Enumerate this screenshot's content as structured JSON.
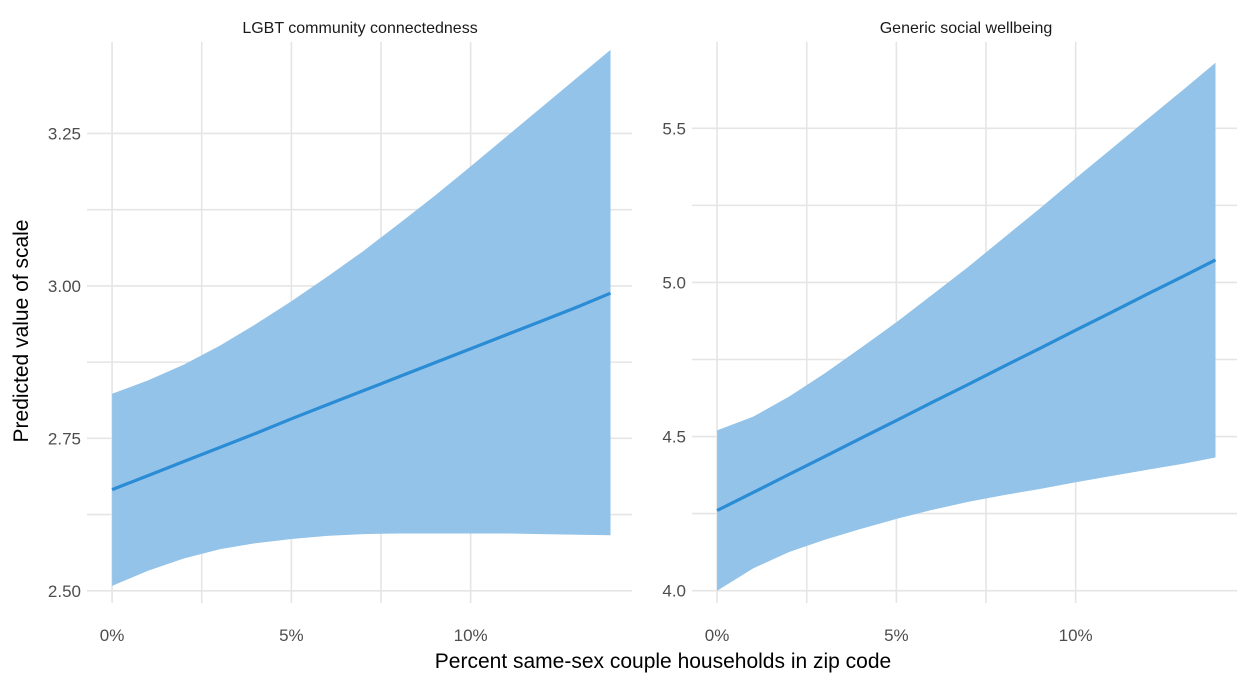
{
  "chart_data": {
    "type": "line",
    "xlabel": "Percent same-sex couple households in zip code",
    "ylabel": "Predicted value of scale",
    "colors": {
      "ribbon": "#93c3e8",
      "line": "#2b8cd6",
      "grid": "#e5e5e5"
    },
    "grid": true,
    "legend": "none",
    "panels": [
      {
        "title": "LGBT community connectedness",
        "xlim": [
          -0.007,
          0.145
        ],
        "ylim": [
          2.48,
          3.4
        ],
        "xticks": [
          0,
          0.05,
          0.1
        ],
        "xtick_labels": [
          "0%",
          "5%",
          "10%"
        ],
        "yticks": [
          2.5,
          2.75,
          3.0,
          3.25
        ],
        "ytick_labels": [
          "2.50",
          "2.75",
          "3.00",
          "3.25"
        ],
        "x": [
          0,
          0.01,
          0.02,
          0.03,
          0.04,
          0.05,
          0.06,
          0.07,
          0.08,
          0.09,
          0.1,
          0.11,
          0.12,
          0.13,
          0.139
        ],
        "fit": [
          2.666,
          2.689,
          2.712,
          2.735,
          2.758,
          2.782,
          2.805,
          2.828,
          2.851,
          2.874,
          2.897,
          2.92,
          2.943,
          2.966,
          2.988
        ],
        "lower": [
          2.508,
          2.533,
          2.553,
          2.568,
          2.578,
          2.585,
          2.59,
          2.593,
          2.594,
          2.594,
          2.594,
          2.594,
          2.593,
          2.592,
          2.591
        ],
        "upper": [
          2.823,
          2.845,
          2.871,
          2.902,
          2.937,
          2.975,
          3.015,
          3.057,
          3.102,
          3.148,
          3.196,
          3.245,
          3.294,
          3.343,
          3.387
        ]
      },
      {
        "title": "Generic social wellbeing",
        "xlim": [
          -0.007,
          0.145
        ],
        "ylim": [
          3.96,
          5.78
        ],
        "xticks": [
          0,
          0.05,
          0.1
        ],
        "xtick_labels": [
          "0%",
          "5%",
          "10%"
        ],
        "yticks": [
          4.0,
          4.5,
          5.0,
          5.5
        ],
        "ytick_labels": [
          "4.0",
          "4.5",
          "5.0",
          "5.5"
        ],
        "x": [
          0,
          0.01,
          0.02,
          0.03,
          0.04,
          0.05,
          0.06,
          0.07,
          0.08,
          0.09,
          0.1,
          0.11,
          0.12,
          0.13,
          0.139
        ],
        "fit": [
          4.26,
          4.318,
          4.377,
          4.435,
          4.494,
          4.552,
          4.611,
          4.669,
          4.728,
          4.786,
          4.845,
          4.903,
          4.962,
          5.02,
          5.073
        ],
        "lower": [
          4.0,
          4.072,
          4.125,
          4.165,
          4.2,
          4.233,
          4.262,
          4.288,
          4.31,
          4.33,
          4.352,
          4.372,
          4.392,
          4.412,
          4.432
        ],
        "upper": [
          4.52,
          4.564,
          4.629,
          4.705,
          4.787,
          4.871,
          4.96,
          5.05,
          5.145,
          5.24,
          5.338,
          5.434,
          5.53,
          5.625,
          5.713
        ]
      }
    ]
  }
}
